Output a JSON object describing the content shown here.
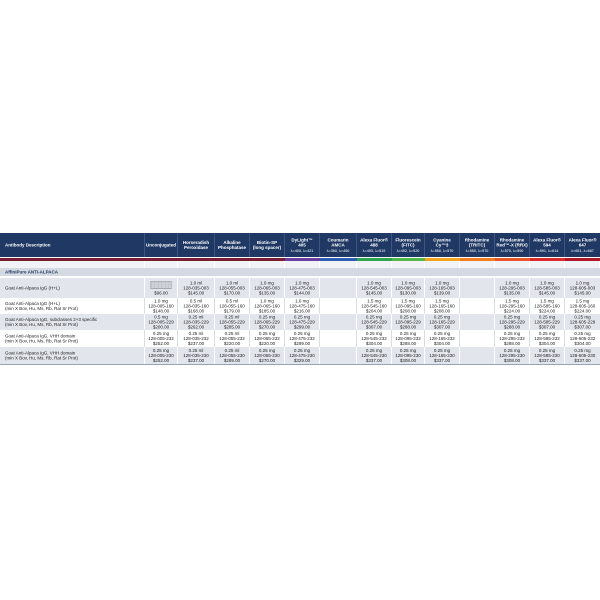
{
  "colors": {
    "header_bg": "#1f3864",
    "section_bg": "#d5dae2",
    "shaded_row_bg": "#e2e6ec",
    "description_bar": "#7b1e34"
  },
  "table": {
    "description_header": "Antibody Description",
    "columns": [
      {
        "lines": [
          "Unconjugated"
        ],
        "wavelength": "",
        "bar_color": "#7b1e34"
      },
      {
        "lines": [
          "Horseradish",
          "Peroxidase"
        ],
        "wavelength": "",
        "bar_color": "#7b1e34"
      },
      {
        "lines": [
          "Alkaline",
          "Phosphatase"
        ],
        "wavelength": "",
        "bar_color": "#7b1e34"
      },
      {
        "lines": [
          "Biotin-SP",
          "(long spacer)"
        ],
        "wavelength": "",
        "bar_color": "#7b1e34"
      },
      {
        "lines": [
          "DyLight™",
          "405"
        ],
        "wavelength": "λ=400, λ=421",
        "bar_color": "#6b3fa0"
      },
      {
        "lines": [
          "Coumarin",
          "AMCA"
        ],
        "wavelength": "λ=350, λ=450",
        "bar_color": "#2e5db3"
      },
      {
        "lines": [
          "Alexa Fluor®",
          "488"
        ],
        "wavelength": "λ=493, λ=519",
        "bar_color": "#2ea44f"
      },
      {
        "lines": [
          "Fluorescein",
          "(FITC)"
        ],
        "wavelength": "λ=492, λ=520",
        "bar_color": "#52b848"
      },
      {
        "lines": [
          "Cyanine",
          "Cy™3"
        ],
        "wavelength": "λ=550, λ=570",
        "bar_color": "#f2a51f"
      },
      {
        "lines": [
          "Rhodamine",
          "(TRITC)"
        ],
        "wavelength": "λ=550, λ=570",
        "bar_color": "#ef7d22"
      },
      {
        "lines": [
          "Rhodamine",
          "Red™-X (RRX)"
        ],
        "wavelength": "λ=570, λ=590",
        "bar_color": "#e9552b"
      },
      {
        "lines": [
          "Alexa Fluor®",
          "594"
        ],
        "wavelength": "λ=591, λ=614",
        "bar_color": "#d92d2d"
      },
      {
        "lines": [
          "Alexa Fluor®",
          "647"
        ],
        "wavelength": "λ=651, λ=667",
        "bar_color": "#b0182b"
      }
    ],
    "section_title": "AffiniPure ANTI-ALPACA",
    "rows": [
      {
        "description": [
          "Goat Anti-Alpaca IgG (H+L)"
        ],
        "cells": [
          {
            "lines": [
              "$96.00"
            ],
            "thumbnail": "product-image"
          },
          {
            "lines": [
              "1.0 ml",
              "128-035-003",
              "$145.00"
            ]
          },
          {
            "lines": [
              "1.0 ml",
              "128-055-003",
              "$170.00"
            ]
          },
          {
            "lines": [
              "1.0 mg",
              "128-065-003",
              "$135.00"
            ]
          },
          {
            "lines": [
              "1.0 mg",
              "128-475-003",
              "$144.00"
            ]
          },
          {
            "lines": []
          },
          {
            "lines": [
              "1.0 mg",
              "128-545-003",
              "$145.00"
            ]
          },
          {
            "lines": [
              "1.0 mg",
              "128-095-003",
              "$130.00"
            ]
          },
          {
            "lines": [
              "1.0 mg",
              "128-165-003",
              "$139.00"
            ]
          },
          {
            "lines": []
          },
          {
            "lines": [
              "1.0 mg",
              "128-295-003",
              "$135.00"
            ]
          },
          {
            "lines": [
              "1.0 mg",
              "128-585-003",
              "$145.00"
            ]
          },
          {
            "lines": [
              "1.0 mg",
              "128-605-003",
              "$145.00"
            ]
          }
        ]
      },
      {
        "description": [
          "Goat Anti-Alpaca IgG (H+L)",
          "(min X Bov, Hu, Ms, Rb, Rat Sr Prot)"
        ],
        "cells": [
          {
            "lines": [
              "1.0 mg",
              "128-005-160",
              "$148.00"
            ]
          },
          {
            "lines": [
              "0.5 ml",
              "128-035-160",
              "$168.00"
            ]
          },
          {
            "lines": [
              "0.5 ml",
              "128-055-160",
              "$179.00"
            ]
          },
          {
            "lines": [
              "1.0 mg",
              "128-065-160",
              "$185.00"
            ]
          },
          {
            "lines": [
              "1.0 mg",
              "128-475-160",
              "$216.00"
            ]
          },
          {
            "lines": []
          },
          {
            "lines": [
              "1.5 mg",
              "128-545-160",
              "$204.00"
            ]
          },
          {
            "lines": [
              "1.5 mg",
              "128-095-160",
              "$208.00"
            ]
          },
          {
            "lines": [
              "1.5 mg",
              "128-165-160",
              "$208.00"
            ]
          },
          {
            "lines": []
          },
          {
            "lines": [
              "1.5 mg",
              "128-295-160",
              "$224.00"
            ]
          },
          {
            "lines": [
              "1.5 mg",
              "128-585-160",
              "$224.00"
            ]
          },
          {
            "lines": [
              "1.5 mg",
              "128-605-160",
              "$224.00"
            ]
          }
        ]
      },
      {
        "description": [
          "Goat Anti-Alpaca IgG, subclasses 2+3 specific",
          "(min X Bov, Hu, Ms, Rb, Rat Sr Prot)"
        ],
        "cells": [
          {
            "lines": [
              "0.5 mg",
              "128-005-229",
              "$200.00"
            ]
          },
          {
            "lines": [
              "0.25 ml",
              "128-035-229",
              "$262.00"
            ]
          },
          {
            "lines": [
              "0.25 ml",
              "128-055-229",
              "$285.00"
            ]
          },
          {
            "lines": [
              "0.25 mg",
              "128-065-229",
              "$270.00"
            ]
          },
          {
            "lines": [
              "0.25 mg",
              "128-475-229",
              "$299.00"
            ]
          },
          {
            "lines": []
          },
          {
            "lines": [
              "0.25 mg",
              "128-545-229",
              "$307.00"
            ]
          },
          {
            "lines": [
              "0.25 mg",
              "128-095-229",
              "$288.00"
            ]
          },
          {
            "lines": [
              "0.25 mg",
              "128-165-229",
              "$307.00"
            ]
          },
          {
            "lines": []
          },
          {
            "lines": [
              "0.25 mg",
              "128-295-229",
              "$288.00"
            ]
          },
          {
            "lines": [
              "0.25 mg",
              "128-585-229",
              "$307.00"
            ]
          },
          {
            "lines": [
              "0.25 mg",
              "128-605-229",
              "$307.00"
            ]
          }
        ]
      },
      {
        "description": [
          "Goat Anti-Alpaca IgG, VHH domain",
          "(min X Bov, Hu, Ms, Rb, Rat Sr Prot)"
        ],
        "cells": [
          {
            "lines": [
              "0.25 mg",
              "128-005-232",
              "$252.00"
            ]
          },
          {
            "lines": [
              "0.25 ml",
              "128-035-232",
              "$237.00"
            ]
          },
          {
            "lines": [
              "0.25 ml",
              "128-055-232",
              "$220.00"
            ]
          },
          {
            "lines": [
              "0.25 mg",
              "128-065-232",
              "$220.00"
            ]
          },
          {
            "lines": [
              "0.25 mg",
              "128-475-232",
              "$299.00"
            ]
          },
          {
            "lines": []
          },
          {
            "lines": [
              "0.25 mg",
              "128-545-232",
              "$304.00"
            ]
          },
          {
            "lines": [
              "0.25 mg",
              "128-095-232",
              "$288.00"
            ]
          },
          {
            "lines": [
              "0.25 mg",
              "128-165-232",
              "$304.00"
            ]
          },
          {
            "lines": []
          },
          {
            "lines": [
              "0.25 mg",
              "128-295-232",
              "$288.00"
            ]
          },
          {
            "lines": [
              "0.25 mg",
              "128-585-232",
              "$304.00"
            ]
          },
          {
            "lines": [
              "0.25 mg",
              "128-605-232",
              "$304.00"
            ]
          }
        ]
      },
      {
        "description": [
          "Goat Anti-Alpaca IgG, VHH domain",
          "(min X Bov, Hu, Ms, Rb, Rat Sr Prot)"
        ],
        "cells": [
          {
            "lines": [
              "0.25 mg",
              "128-005-230",
              "$252.00"
            ]
          },
          {
            "lines": [
              "0.25 ml",
              "128-035-230",
              "$237.00"
            ]
          },
          {
            "lines": [
              "0.25 ml",
              "128-055-230",
              "$289.00"
            ]
          },
          {
            "lines": [
              "0.25 mg",
              "128-065-230",
              "$270.00"
            ]
          },
          {
            "lines": [
              "0.25 mg",
              "128-475-230",
              "$329.00"
            ]
          },
          {
            "lines": []
          },
          {
            "lines": [
              "0.25 mg",
              "128-545-230",
              "$337.00"
            ]
          },
          {
            "lines": [
              "0.25 mg",
              "128-095-230",
              "$308.00"
            ]
          },
          {
            "lines": [
              "0.25 mg",
              "128-165-230",
              "$337.00"
            ]
          },
          {
            "lines": []
          },
          {
            "lines": [
              "0.25 mg",
              "128-295-230",
              "$308.00"
            ]
          },
          {
            "lines": [
              "0.25 mg",
              "128-585-230",
              "$337.00"
            ]
          },
          {
            "lines": [
              "0.25 mg",
              "128-605-230",
              "$337.00"
            ]
          }
        ]
      }
    ]
  }
}
